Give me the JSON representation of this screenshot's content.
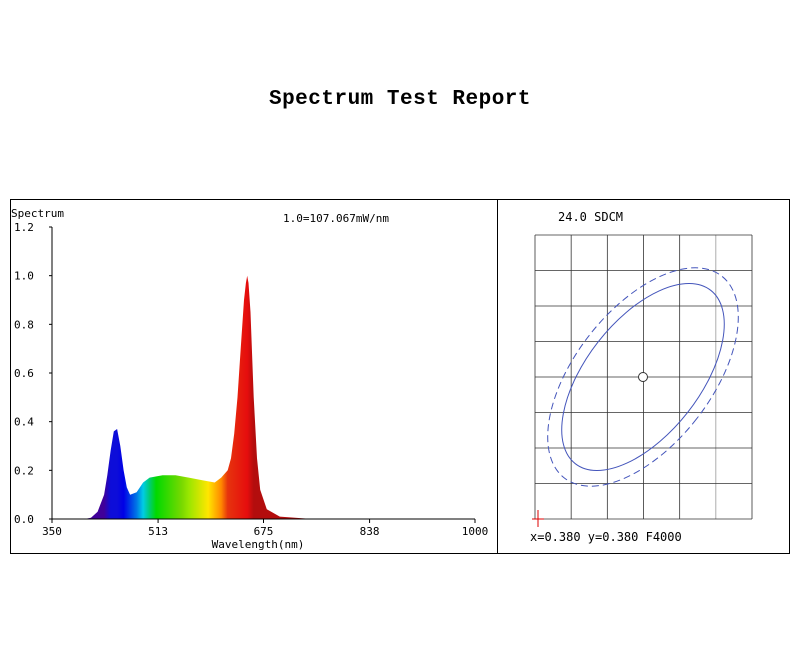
{
  "report": {
    "title": "Spectrum Test Report"
  },
  "chart_data": [
    {
      "type": "area",
      "title": "1.0=107.067mW/nm",
      "ylabel": "Spectrum",
      "xlabel": "Wavelength(nm)",
      "xlim": [
        350,
        1000
      ],
      "ylim": [
        0,
        1.2
      ],
      "x_ticks": [
        350,
        513,
        675,
        838,
        1000
      ],
      "y_ticks": [
        0.0,
        0.2,
        0.4,
        0.6,
        0.8,
        1.0,
        1.2
      ],
      "x_tick_labels": [
        "350",
        "513",
        "675",
        "838",
        "1000"
      ],
      "y_tick_labels": [
        "0.0",
        "0.2",
        "0.4",
        "0.6",
        "0.8",
        "1.0",
        "1.2"
      ],
      "fill": "rainbow-by-wavelength",
      "grid": false,
      "series": [
        {
          "x": [
            350,
            400,
            410,
            420,
            430,
            435,
            440,
            445,
            450,
            455,
            460,
            465,
            470,
            480,
            490,
            500,
            520,
            540,
            560,
            580,
            600,
            610,
            620,
            625,
            630,
            635,
            640,
            645,
            648,
            650,
            652,
            655,
            660,
            665,
            670,
            680,
            700,
            750,
            800,
            1000
          ],
          "y": [
            0,
            0,
            0.005,
            0.03,
            0.1,
            0.18,
            0.28,
            0.36,
            0.37,
            0.3,
            0.2,
            0.13,
            0.1,
            0.11,
            0.15,
            0.17,
            0.18,
            0.18,
            0.17,
            0.16,
            0.15,
            0.17,
            0.2,
            0.25,
            0.35,
            0.5,
            0.7,
            0.9,
            0.97,
            1.0,
            0.97,
            0.85,
            0.5,
            0.25,
            0.12,
            0.04,
            0.01,
            0,
            0,
            0
          ]
        }
      ]
    },
    {
      "type": "scatter",
      "title": "24.0 SDCM",
      "xlabel": "",
      "ylabel": "",
      "grid": true,
      "grid_columns": 6,
      "grid_rows": 8,
      "points": [
        {
          "x": 0.38,
          "y": 0.38
        }
      ],
      "ellipses": [
        "solid",
        "dashed"
      ],
      "readout": "x=0.380 y=0.380 F4000"
    }
  ]
}
